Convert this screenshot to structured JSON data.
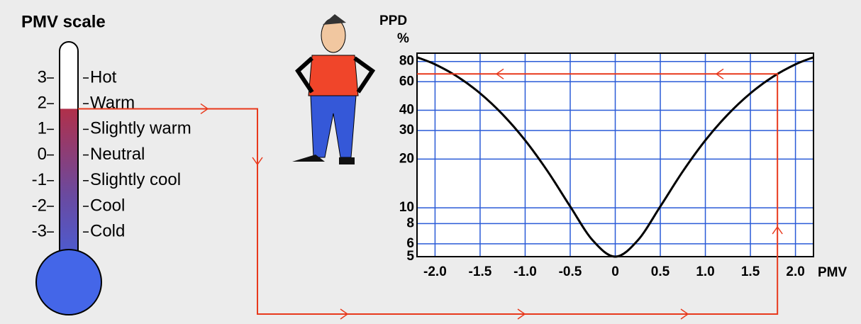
{
  "thermometer": {
    "title": "PMV scale",
    "level": 1.8,
    "scale": [
      {
        "value": 3,
        "label": "Hot"
      },
      {
        "value": 2,
        "label": "Warm"
      },
      {
        "value": 1,
        "label": "Slightly warm"
      },
      {
        "value": 0,
        "label": "Neutral"
      },
      {
        "value": -1,
        "label": "Slightly cool"
      },
      {
        "value": -2,
        "label": "Cool"
      },
      {
        "value": -3,
        "label": "Cold"
      }
    ]
  },
  "chart_data": {
    "type": "line",
    "y_label": "PPD",
    "y_unit": "%",
    "x_label": "PMV",
    "x": [
      -2.2,
      -2,
      -1.75,
      -1.5,
      -1.25,
      -1,
      -0.75,
      -0.5,
      -0.25,
      0,
      0.25,
      0.5,
      0.75,
      1,
      1.25,
      1.5,
      1.75,
      2,
      2.2
    ],
    "series": [
      {
        "color": "#000000",
        "values": [
          84.9,
          76.8,
          64.4,
          50.9,
          37.7,
          26.1,
          16.8,
          10.2,
          6.3,
          5,
          6.3,
          10.2,
          16.8,
          26.1,
          37.7,
          50.9,
          64.4,
          76.8,
          84.9
        ]
      }
    ],
    "xlim": [
      -2.2,
      2.2
    ],
    "xticks": [
      {
        "value": -2,
        "label": "-2.0"
      },
      -1.5,
      {
        "value": -1,
        "label": "-1.0"
      },
      -0.5,
      0,
      0.5,
      {
        "value": 1,
        "label": "1.0"
      },
      1.5,
      {
        "value": 2,
        "label": "2.0"
      }
    ],
    "ylim": [
      5,
      90
    ],
    "log_y": true,
    "grid": true,
    "grid_color": "#2a5bd7",
    "yticks": [
      5,
      6,
      8,
      10,
      20,
      30,
      40,
      60,
      80
    ],
    "example": {
      "pmv": 1.8,
      "ppd": 67,
      "color": "#e8391c"
    }
  }
}
